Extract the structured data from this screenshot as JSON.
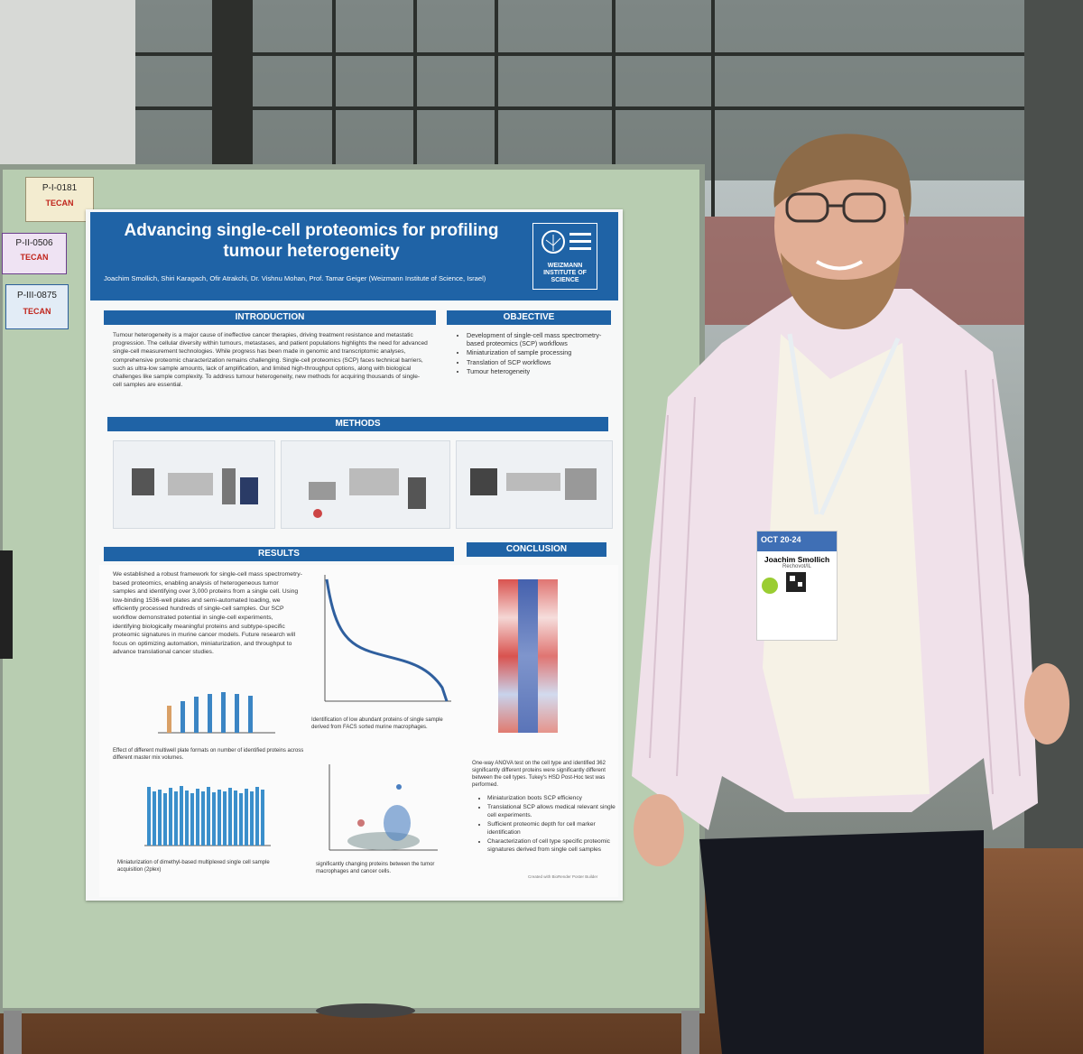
{
  "board_labels": [
    {
      "code": "P-I-0181",
      "brand": "TECAN"
    },
    {
      "code": "P-II-0506",
      "brand": "TECAN"
    },
    {
      "code": "P-III-0875",
      "brand": "TECAN"
    }
  ],
  "poster": {
    "title": "Advancing single-cell proteomics for profiling tumour heterogeneity",
    "authors": "Joachim Smollich, Shiri Karagach, Ofir Atrakchi, Dr. Vishnu Mohan, Prof. Tamar Geiger (Weizmann Institute of Science, Israel)",
    "logo": "WEIZMANN INSTITUTE OF SCIENCE",
    "introduction": {
      "heading": "INTRODUCTION",
      "text": "Tumour heterogeneity is a major cause of ineffective cancer therapies, driving treatment resistance and metastatic progression. The cellular diversity within tumours, metastases, and patient populations highlights the need for advanced single-cell measurement technologies. While progress has been made in genomic and transcriptomic analyses, comprehensive proteomic characterization remains challenging. Single-cell proteomics (SCP) faces technical barriers, such as ultra-low sample amounts, lack of amplification, and limited high-throughput options, along with biological challenges like sample complexity. To address tumour heterogeneity, new methods for acquiring thousands of single-cell samples are essential."
    },
    "objective": {
      "heading": "OBJECTIVE",
      "items": [
        "Development of single-cell mass spectrometry-based proteomics (SCP) workflows",
        "Miniaturization of sample processing",
        "Translation of SCP workflows",
        "Tumour heterogeneity"
      ]
    },
    "methods": {
      "heading": "METHODS"
    },
    "results": {
      "heading": "RESULTS",
      "text": "We established a robust framework for single-cell mass spectrometry-based proteomics, enabling analysis of heterogeneous tumor samples and identifying over 3,000 proteins from a single cell. Using low-binding 1536-well plates and semi-automated loading, we efficiently processed hundreds of single-cell samples. Our SCP workflow demonstrated potential in single-cell experiments, identifying biologically meaningful proteins and subtype-specific proteomic signatures in murine cancer models. Future research will focus on optimizing automation, miniaturization, and throughput to advance translational cancer studies.",
      "captions": [
        "Identification of low abundant proteins of single sample derived from FACS sorted murine macrophages.",
        "Effect of different multiwell plate formats on number of identified proteins across different master mix volumes.",
        "Miniaturization of dimethyl-based multiplexed single cell sample acquisition (2plex)",
        "significantly changing proteins between the tumor macrophages and cancer cells."
      ]
    },
    "conclusion": {
      "heading": "CONCLUSION",
      "caption": "One-way ANOVA test on the cell type and identified 362 significantly different proteins were significantly different between the cell types. Tukey's HSD Post-Hoc test was performed.",
      "items": [
        "Miniaturization boots SCP efficiency",
        "Translational SCP allows medical relevant single cell experiments.",
        "Sufficient proteomic depth for cell marker identification",
        "Characterization of cell type specific proteomic signatures derived from single cell samples"
      ]
    },
    "footer": "Created with BioRender Poster Builder"
  },
  "badge": {
    "dates": "OCT 20-24",
    "name": "Joachim Smollich",
    "affiliation": "Rechovot/IL"
  }
}
